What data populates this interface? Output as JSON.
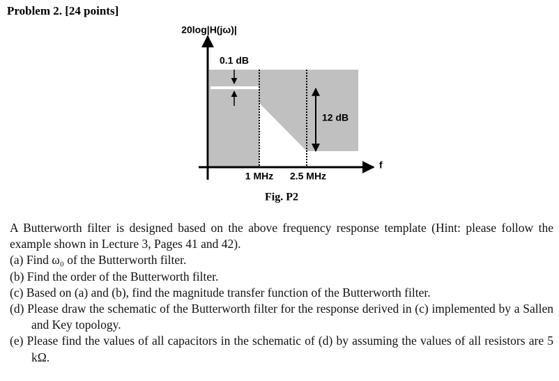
{
  "header": {
    "title": "Problem 2. [24 points]"
  },
  "figure": {
    "y_label": "20log|H(jω)|",
    "ripple_label": "0.1 dB",
    "attenuation_label": "12 dB",
    "f1_label": "1 MHz",
    "f2_label": "2.5 MHz",
    "x_label": "f",
    "caption": "Fig. P2"
  },
  "problem": {
    "intro": "A Butterworth filter is designed based on the above frequency response template (Hint: please follow the example shown in Lecture 3, Pages 41 and 42).",
    "items": [
      {
        "label": "(a)",
        "text": "Find ω₀ of the Butterworth filter."
      },
      {
        "label": "(b)",
        "text": "Find the order of the Butterworth filter."
      },
      {
        "label": "(c)",
        "text": "Based on (a) and (b), find the magnitude transfer function of the Butterworth filter."
      },
      {
        "label": "(d)",
        "text": "Please draw the schematic of the Butterworth filter for the response derived in (c) implemented by a Sallen and Key topology."
      },
      {
        "label": "(e)",
        "text": "Please find the values of all capacitors in the schematic of (d) by assuming the values of all resistors are 5 kΩ."
      }
    ]
  }
}
